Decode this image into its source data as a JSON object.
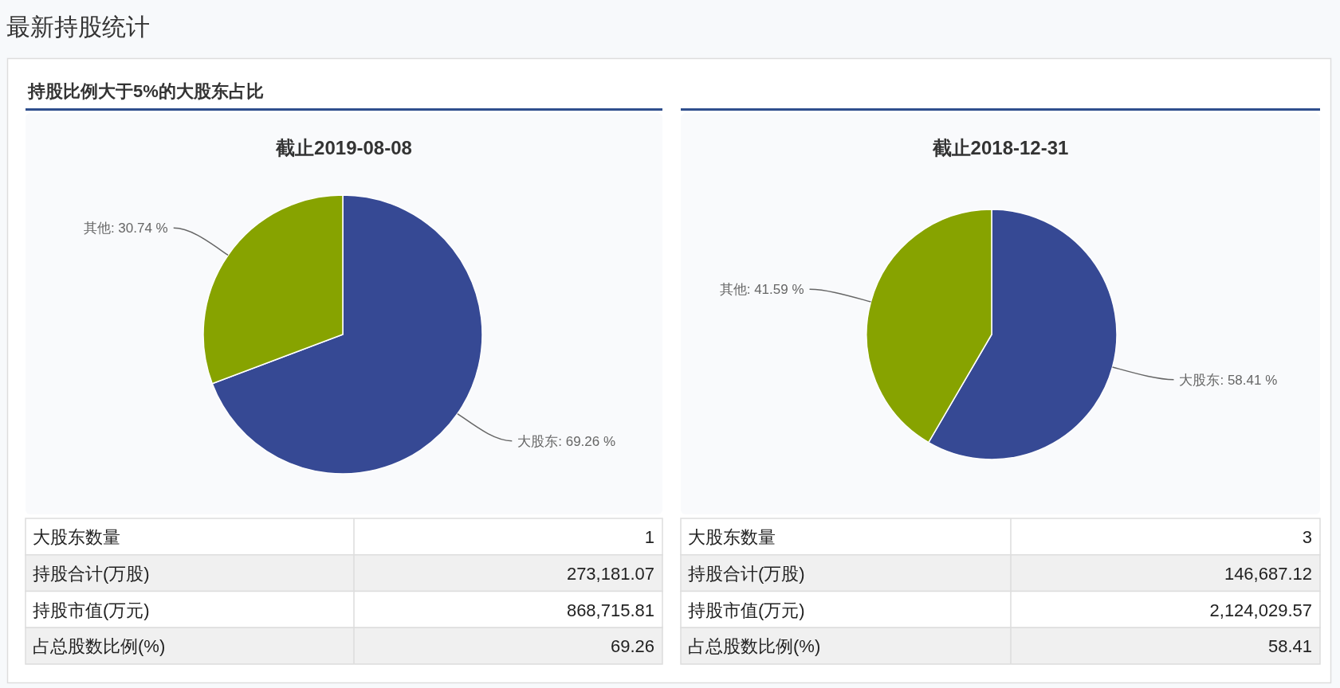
{
  "chart_data": [
    {
      "type": "other",
      "title": "最新持股统计",
      "subtitle": "持股比例大于5%的大股东占比"
    },
    {
      "type": "pie",
      "title": "截止2019-08-08",
      "categories": [
        "大股东",
        "其他"
      ],
      "values": [
        69.26,
        30.74
      ],
      "colors": [
        "#364994",
        "#87a300"
      ],
      "value_labels": [
        "69.26 %",
        "30.74 %"
      ],
      "annotations": [
        "大股东数量",
        "1",
        "持股合计(万股)",
        "273,181.07",
        "持股市值(万元)",
        "868,715.81",
        "占总股数比例(%)",
        "69.26"
      ]
    },
    {
      "type": "pie",
      "title": "截止2018-12-31",
      "categories": [
        "大股东",
        "其他"
      ],
      "values": [
        58.41,
        41.59
      ],
      "colors": [
        "#364994",
        "#87a300"
      ],
      "value_labels": [
        "58.41 %",
        "41.59 %"
      ],
      "annotations": [
        "大股东数量",
        "3",
        "持股合计(万股)",
        "146,687.12",
        "持股市值(万元)",
        "2,124,029.57",
        "占总股数比例(%)",
        "58.41"
      ]
    }
  ]
}
